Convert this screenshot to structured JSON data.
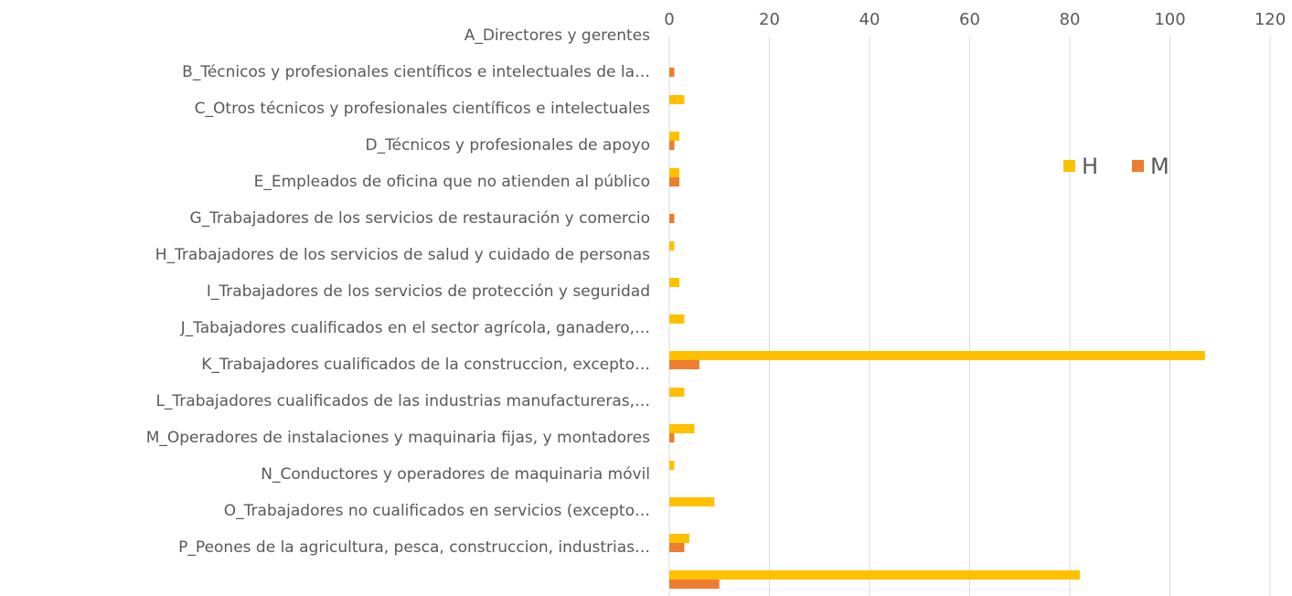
{
  "chart_data": {
    "type": "barh",
    "categories": [
      "A_Directores y gerentes",
      "B_Técnicos y profesionales científicos e intelectuales de la…",
      "C_Otros técnicos y profesionales científicos e intelectuales",
      "D_Técnicos y profesionales de apoyo",
      "E_Empleados de oficina que no atienden al público",
      "G_Trabajadores de los servicios de restauración y comercio",
      "H_Trabajadores de los servicios de salud y cuidado de personas",
      "I_Trabajadores de los servicios de protección y seguridad",
      "J_Tabajadores cualificados en el sector agrícola, ganadero,…",
      "K_Trabajadores cualificados de la construccion, excepto…",
      "L_Trabajadores cualificados de las industrias manufactureras,…",
      "M_Operadores de instalaciones y maquinaria fijas, y montadores",
      "N_Conductores y operadores de maquinaria móvil",
      "O_Trabajadores no cualificados en servicios (excepto…",
      "P_Peones de la agricultura, pesca, construccion, industrias…",
      null
    ],
    "series": [
      {
        "name": "H",
        "color": "#FFC000",
        "values": [
          0,
          0,
          3,
          2,
          2,
          0,
          1,
          2,
          3,
          107,
          3,
          5,
          1,
          9,
          4,
          82
        ]
      },
      {
        "name": "M",
        "color": "#ED7D31",
        "values": [
          0,
          1,
          0,
          1,
          2,
          1,
          0,
          0,
          0,
          6,
          0,
          1,
          0,
          0,
          3,
          10
        ]
      }
    ],
    "xlim": [
      0,
      120
    ],
    "xticks": [
      0,
      20,
      40,
      60,
      80,
      100,
      120
    ],
    "grid": true,
    "legend": "upper right"
  }
}
